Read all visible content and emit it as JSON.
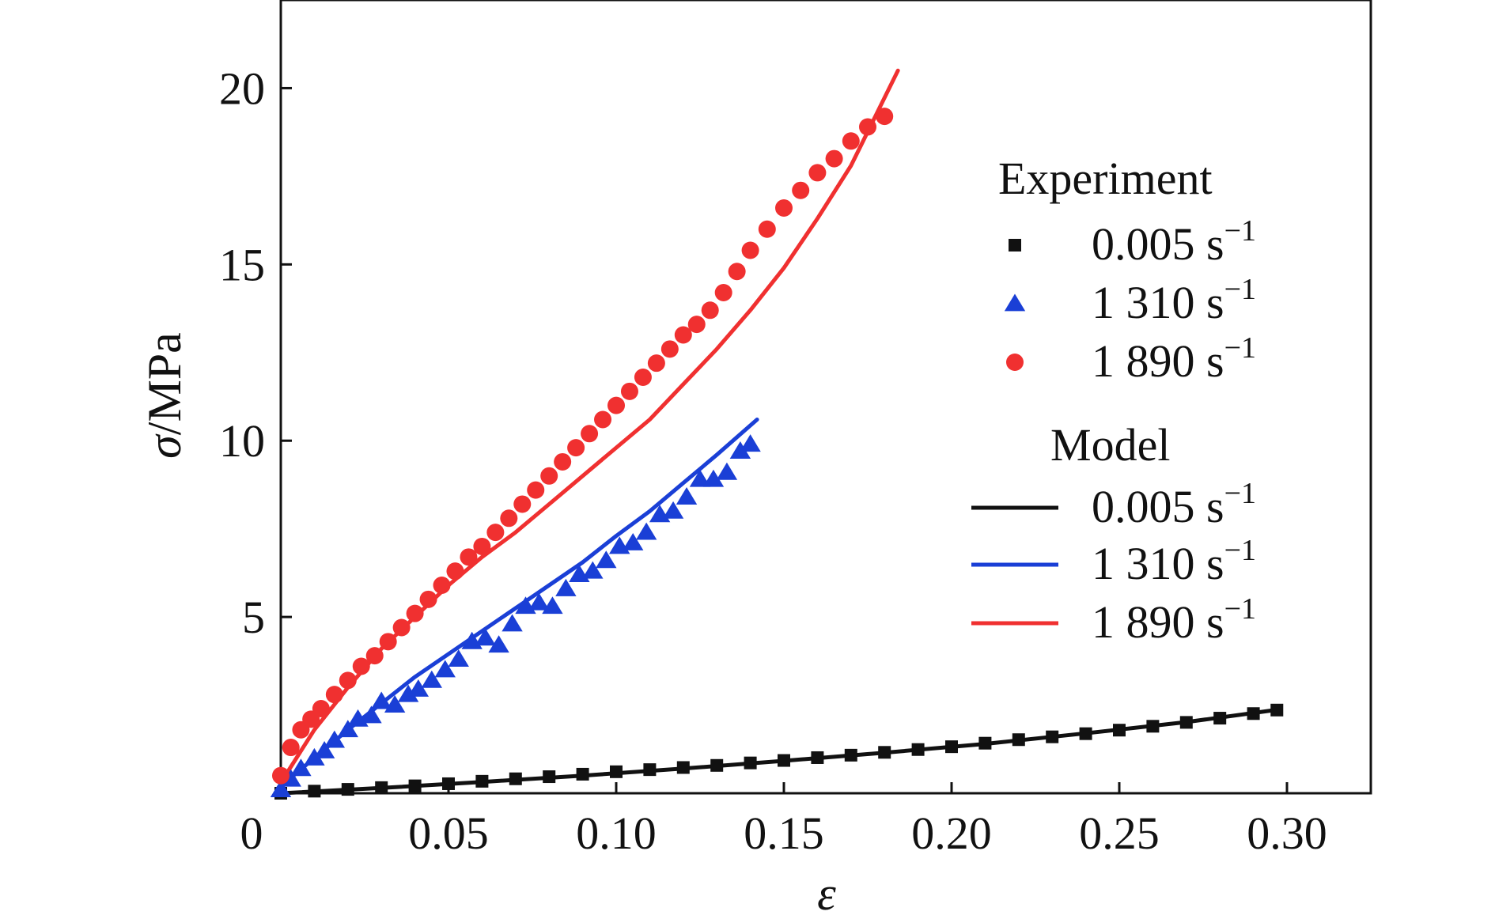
{
  "chart_data": {
    "type": "scatter",
    "xlabel": "ε",
    "ylabel_symbol": "σ",
    "ylabel_unit": "/MPa",
    "xlim": [
      0,
      0.325
    ],
    "ylim": [
      0,
      22.5
    ],
    "grid": false,
    "x_ticks": [
      {
        "value": 0.05,
        "label": "0.05"
      },
      {
        "value": 0.1,
        "label": "0.10"
      },
      {
        "value": 0.15,
        "label": "0.15"
      },
      {
        "value": 0.2,
        "label": "0.20"
      },
      {
        "value": 0.25,
        "label": "0.25"
      },
      {
        "value": 0.3,
        "label": "0.30"
      }
    ],
    "y_ticks": [
      {
        "value": 5,
        "label": "5"
      },
      {
        "value": 10,
        "label": "10"
      },
      {
        "value": 15,
        "label": "15"
      },
      {
        "value": 20,
        "label": "20"
      }
    ],
    "origin_label": "0",
    "legend": {
      "placement": "right",
      "experiment_title": "Experiment",
      "model_title": "Model",
      "rate_unit_base": "s",
      "rate_unit_exp": "−1"
    },
    "experiment_series": [
      {
        "rate_label": "0.005",
        "marker": "square",
        "color": "#111111",
        "x": [
          0.0,
          0.01,
          0.02,
          0.03,
          0.04,
          0.05,
          0.06,
          0.07,
          0.08,
          0.09,
          0.1,
          0.11,
          0.12,
          0.13,
          0.14,
          0.15,
          0.16,
          0.17,
          0.18,
          0.19,
          0.2,
          0.21,
          0.22,
          0.23,
          0.24,
          0.25,
          0.26,
          0.27,
          0.28,
          0.29,
          0.297
        ],
        "y": [
          0.0,
          0.06,
          0.11,
          0.16,
          0.21,
          0.27,
          0.34,
          0.41,
          0.47,
          0.54,
          0.61,
          0.67,
          0.73,
          0.79,
          0.86,
          0.93,
          1.01,
          1.08,
          1.16,
          1.24,
          1.32,
          1.42,
          1.52,
          1.6,
          1.69,
          1.79,
          1.9,
          2.01,
          2.13,
          2.26,
          2.36
        ]
      },
      {
        "rate_label": "1 310",
        "marker": "triangle",
        "color": "#1a3fd6",
        "x": [
          0.0,
          0.003,
          0.006,
          0.01,
          0.013,
          0.016,
          0.02,
          0.023,
          0.027,
          0.03,
          0.034,
          0.038,
          0.041,
          0.045,
          0.049,
          0.053,
          0.057,
          0.061,
          0.065,
          0.069,
          0.073,
          0.077,
          0.081,
          0.085,
          0.089,
          0.093,
          0.097,
          0.101,
          0.105,
          0.109,
          0.113,
          0.117,
          0.121,
          0.125,
          0.129,
          0.133,
          0.137,
          0.14
        ],
        "y": [
          0.1,
          0.4,
          0.7,
          1.0,
          1.2,
          1.5,
          1.8,
          2.1,
          2.2,
          2.6,
          2.5,
          2.8,
          2.95,
          3.2,
          3.5,
          3.8,
          4.3,
          4.4,
          4.2,
          4.8,
          5.3,
          5.4,
          5.3,
          5.8,
          6.2,
          6.3,
          6.6,
          7.0,
          7.1,
          7.4,
          7.9,
          8.0,
          8.4,
          8.9,
          8.9,
          9.1,
          9.7,
          9.9
        ]
      },
      {
        "rate_label": "1 890",
        "marker": "circle",
        "color": "#f03030",
        "x": [
          0.0,
          0.003,
          0.006,
          0.009,
          0.012,
          0.016,
          0.02,
          0.024,
          0.028,
          0.032,
          0.036,
          0.04,
          0.044,
          0.048,
          0.052,
          0.056,
          0.06,
          0.064,
          0.068,
          0.072,
          0.076,
          0.08,
          0.084,
          0.088,
          0.092,
          0.096,
          0.1,
          0.104,
          0.108,
          0.112,
          0.116,
          0.12,
          0.124,
          0.128,
          0.132,
          0.136,
          0.14,
          0.145,
          0.15,
          0.155,
          0.16,
          0.165,
          0.17,
          0.175,
          0.18
        ],
        "y": [
          0.5,
          1.3,
          1.8,
          2.1,
          2.4,
          2.8,
          3.2,
          3.6,
          3.9,
          4.3,
          4.7,
          5.1,
          5.5,
          5.9,
          6.3,
          6.7,
          7.0,
          7.4,
          7.8,
          8.2,
          8.6,
          9.0,
          9.4,
          9.8,
          10.2,
          10.6,
          11.0,
          11.4,
          11.8,
          12.2,
          12.6,
          13.0,
          13.3,
          13.7,
          14.2,
          14.8,
          15.4,
          16.0,
          16.6,
          17.1,
          17.6,
          18.0,
          18.5,
          18.9,
          19.2
        ]
      }
    ],
    "model_series": [
      {
        "rate_label": "0.005",
        "color": "#111111",
        "x": [
          0.0,
          0.03,
          0.06,
          0.09,
          0.12,
          0.15,
          0.18,
          0.21,
          0.24,
          0.27,
          0.298
        ],
        "y": [
          0.0,
          0.15,
          0.32,
          0.5,
          0.7,
          0.92,
          1.15,
          1.4,
          1.7,
          2.02,
          2.38
        ]
      },
      {
        "rate_label": "1 310",
        "color": "#1a3fd6",
        "x": [
          0.0,
          0.01,
          0.02,
          0.03,
          0.04,
          0.05,
          0.06,
          0.07,
          0.08,
          0.09,
          0.1,
          0.11,
          0.12,
          0.13,
          0.142
        ],
        "y": [
          0.2,
          1.0,
          1.8,
          2.55,
          3.3,
          3.95,
          4.6,
          5.25,
          5.9,
          6.55,
          7.3,
          8.0,
          8.8,
          9.6,
          10.6
        ]
      },
      {
        "rate_label": "1 890",
        "color": "#f03030",
        "x": [
          0.0,
          0.01,
          0.02,
          0.03,
          0.04,
          0.05,
          0.06,
          0.07,
          0.08,
          0.09,
          0.1,
          0.11,
          0.12,
          0.13,
          0.14,
          0.15,
          0.16,
          0.17,
          0.184
        ],
        "y": [
          0.3,
          1.8,
          3.0,
          4.1,
          5.0,
          5.9,
          6.7,
          7.4,
          8.2,
          9.0,
          9.8,
          10.6,
          11.6,
          12.6,
          13.7,
          14.9,
          16.3,
          17.8,
          20.5
        ]
      }
    ]
  }
}
